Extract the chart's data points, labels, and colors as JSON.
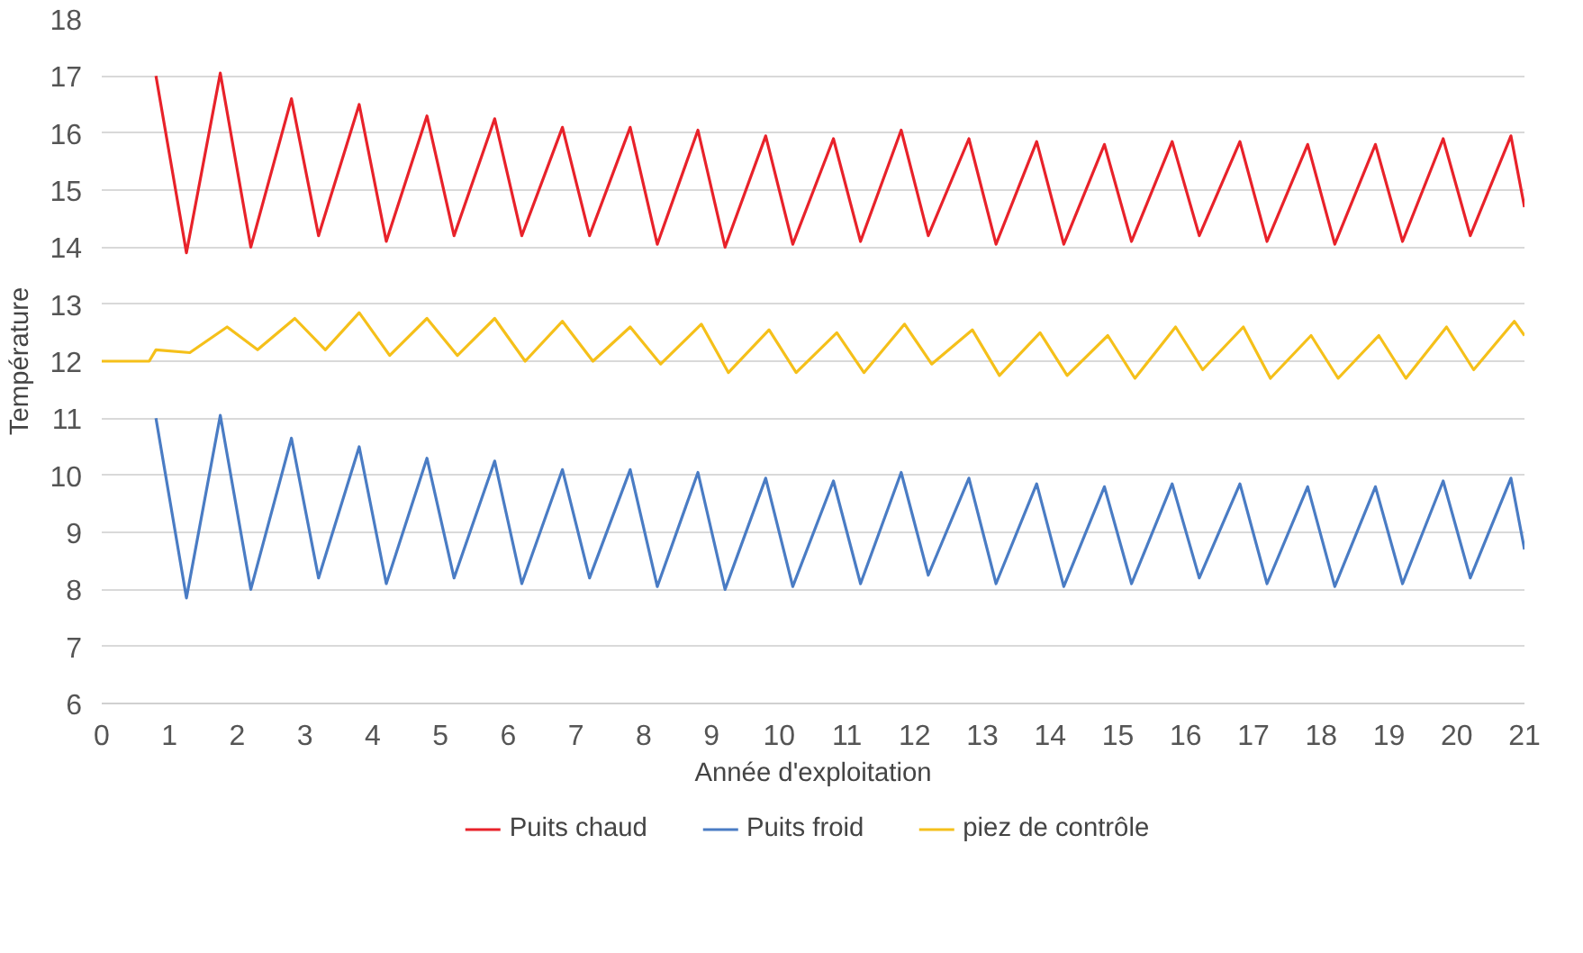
{
  "chart_data": {
    "type": "line",
    "xlabel": "Année d'exploitation",
    "ylabel": "Température",
    "xlim": [
      0,
      21
    ],
    "ylim": [
      6,
      18
    ],
    "xticks": [
      0,
      1,
      2,
      3,
      4,
      5,
      6,
      7,
      8,
      9,
      10,
      11,
      12,
      13,
      14,
      15,
      16,
      17,
      18,
      19,
      20,
      21
    ],
    "yticks": [
      6,
      7,
      8,
      9,
      10,
      11,
      12,
      13,
      14,
      15,
      16,
      17,
      18
    ],
    "grid": "y",
    "legend": "bottom",
    "marker": "none",
    "line_style": "solid",
    "series": [
      {
        "name": "Puits chaud",
        "color": "#e8222a",
        "x": [
          0.8,
          1.25,
          1.75,
          2.2,
          2.8,
          3.2,
          3.8,
          4.2,
          4.8,
          5.2,
          5.8,
          6.2,
          6.8,
          7.2,
          7.8,
          8.2,
          8.8,
          9.2,
          9.8,
          10.2,
          10.8,
          11.2,
          11.8,
          12.2,
          12.8,
          13.2,
          13.8,
          14.2,
          14.8,
          15.2,
          15.8,
          16.2,
          16.8,
          17.2,
          17.8,
          18.2,
          18.8,
          19.2,
          19.8,
          20.2,
          20.8,
          21
        ],
        "values": [
          17,
          13.9,
          17.05,
          14,
          16.6,
          14.2,
          16.5,
          14.1,
          16.3,
          14.2,
          16.25,
          14.2,
          16.1,
          14.2,
          16.1,
          14.05,
          16.05,
          14,
          15.95,
          14.05,
          15.9,
          14.1,
          16.05,
          14.2,
          15.9,
          14.05,
          15.85,
          14.05,
          15.8,
          14.1,
          15.85,
          14.2,
          15.85,
          14.1,
          15.8,
          14.05,
          15.8,
          14.1,
          15.9,
          14.2,
          15.95,
          14.7
        ]
      },
      {
        "name": "Puits froid",
        "color": "#4a7cc4",
        "x": [
          0.8,
          1.25,
          1.75,
          2.2,
          2.8,
          3.2,
          3.8,
          4.2,
          4.8,
          5.2,
          5.8,
          6.2,
          6.8,
          7.2,
          7.8,
          8.2,
          8.8,
          9.2,
          9.8,
          10.2,
          10.8,
          11.2,
          11.8,
          12.2,
          12.8,
          13.2,
          13.8,
          14.2,
          14.8,
          15.2,
          15.8,
          16.2,
          16.8,
          17.2,
          17.8,
          18.2,
          18.8,
          19.2,
          19.8,
          20.2,
          20.8,
          21
        ],
        "values": [
          11,
          7.85,
          11.05,
          8,
          10.65,
          8.2,
          10.5,
          8.1,
          10.3,
          8.2,
          10.25,
          8.1,
          10.1,
          8.2,
          10.1,
          8.05,
          10.05,
          8,
          9.95,
          8.05,
          9.9,
          8.1,
          10.05,
          8.25,
          9.95,
          8.1,
          9.85,
          8.05,
          9.8,
          8.1,
          9.85,
          8.2,
          9.85,
          8.1,
          9.8,
          8.05,
          9.8,
          8.1,
          9.9,
          8.2,
          9.95,
          8.7
        ]
      },
      {
        "name": "piez de contrôle",
        "color": "#f5c01a",
        "x": [
          0,
          0.7,
          0.8,
          1.3,
          1.85,
          2.3,
          2.85,
          3.3,
          3.8,
          4.25,
          4.8,
          5.25,
          5.8,
          6.25,
          6.8,
          7.25,
          7.8,
          8.25,
          8.85,
          9.25,
          9.85,
          10.25,
          10.85,
          11.25,
          11.85,
          12.25,
          12.85,
          13.25,
          13.85,
          14.25,
          14.85,
          15.25,
          15.85,
          16.25,
          16.85,
          17.25,
          17.85,
          18.25,
          18.85,
          19.25,
          19.85,
          20.25,
          20.85,
          21
        ],
        "values": [
          12,
          12,
          12.2,
          12.15,
          12.6,
          12.2,
          12.75,
          12.2,
          12.85,
          12.1,
          12.75,
          12.1,
          12.75,
          12,
          12.7,
          12,
          12.6,
          11.95,
          12.65,
          11.8,
          12.55,
          11.8,
          12.5,
          11.8,
          12.65,
          11.95,
          12.55,
          11.75,
          12.5,
          11.75,
          12.45,
          11.7,
          12.6,
          11.85,
          12.6,
          11.7,
          12.45,
          11.7,
          12.45,
          11.7,
          12.6,
          11.85,
          12.7,
          12.45
        ]
      }
    ]
  }
}
